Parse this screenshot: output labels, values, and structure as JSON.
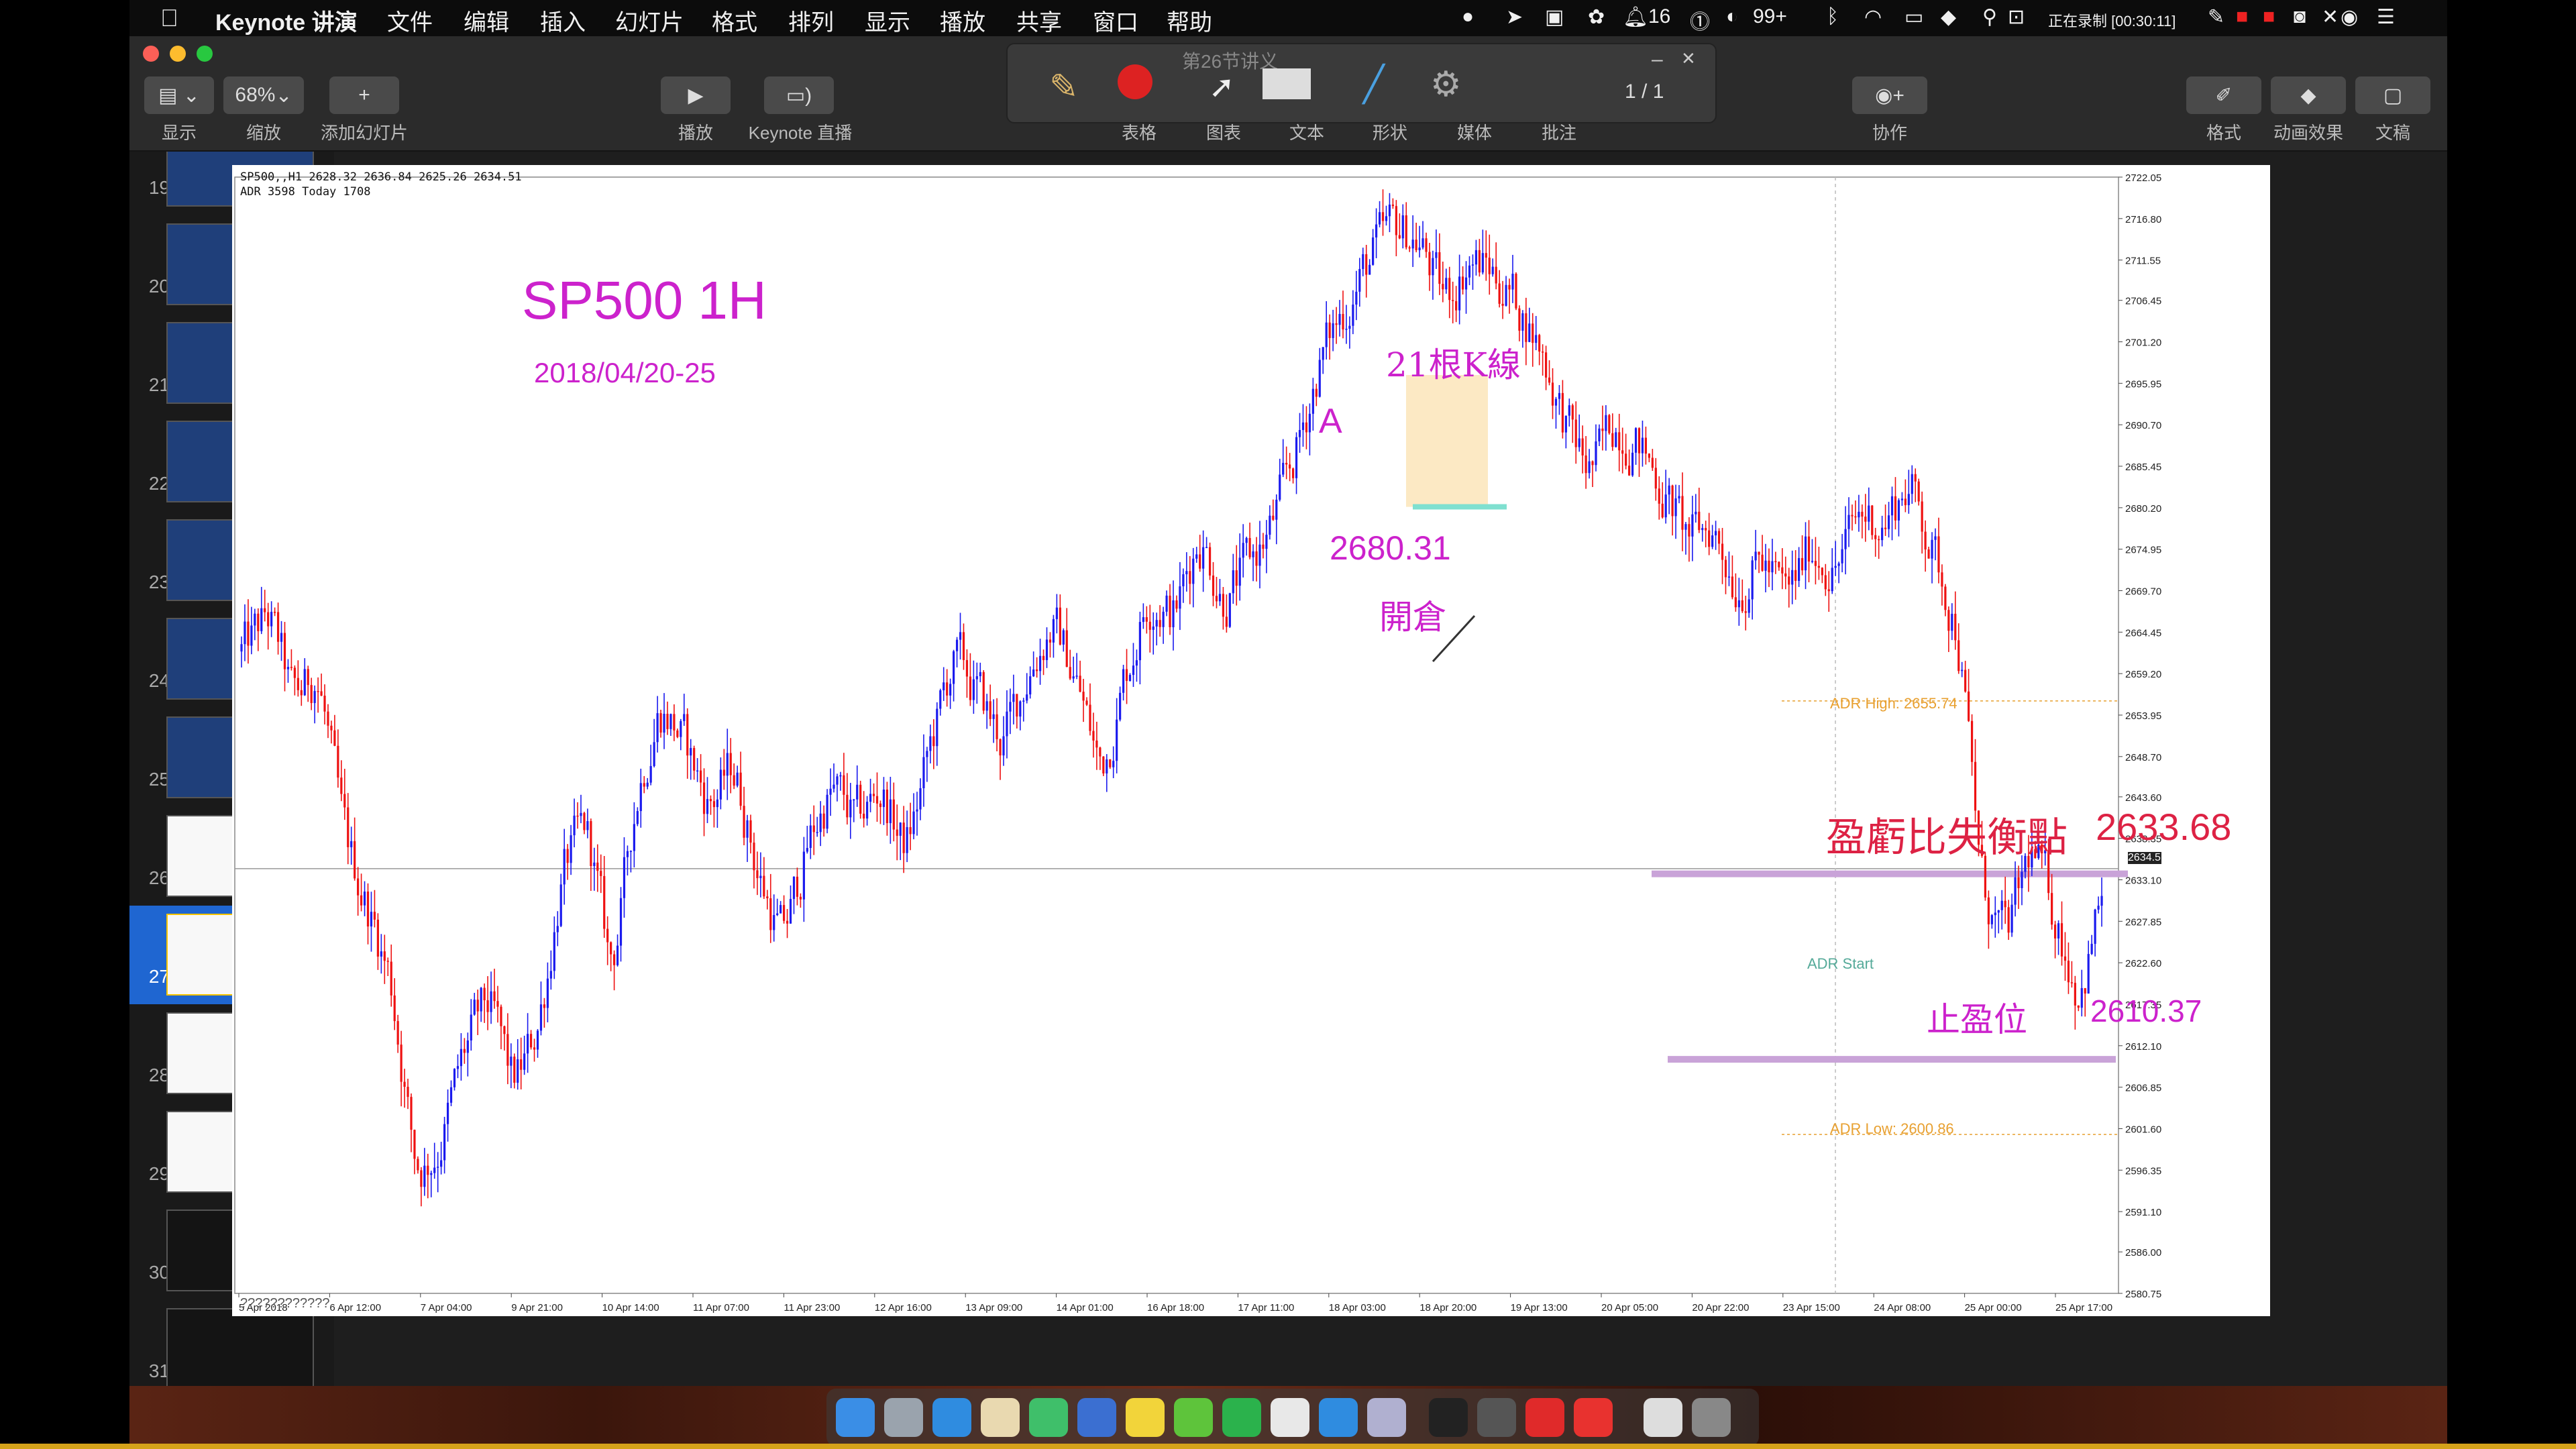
{
  "menubar": {
    "app_name": "Keynote 讲演",
    "items": [
      "文件",
      "编辑",
      "插入",
      "幻灯片",
      "格式",
      "排列",
      "显示",
      "播放",
      "共享",
      "窗口",
      "帮助"
    ],
    "status": {
      "notification_count": "16",
      "badge_count": "99+",
      "recording": "正在录制 [00:30:11]"
    }
  },
  "toolbar": {
    "view_label": "显示",
    "zoom_value": "68%",
    "zoom_label": "缩放",
    "add_slide_label": "添加幻灯片",
    "play_label": "播放",
    "live_label": "Keynote 直播",
    "table_label": "表格",
    "chart_label": "图表",
    "text_label": "文本",
    "shape_label": "形状",
    "media_label": "媒体",
    "comment_label": "批注",
    "collab_label": "协作",
    "format_label": "格式",
    "animate_label": "动画效果",
    "document_label": "文稿",
    "floating_title": "第26节讲义",
    "page_indicator": "1 / 1"
  },
  "sidebar": {
    "slides": [
      {
        "num": "19",
        "style": "dark"
      },
      {
        "num": "20",
        "style": "dark"
      },
      {
        "num": "21",
        "style": "dark"
      },
      {
        "num": "22",
        "style": "dark"
      },
      {
        "num": "23",
        "style": "dark"
      },
      {
        "num": "24",
        "style": "dark"
      },
      {
        "num": "25",
        "style": "dark"
      },
      {
        "num": "26",
        "style": "light"
      },
      {
        "num": "27",
        "style": "light",
        "selected": true
      },
      {
        "num": "28",
        "style": "light"
      },
      {
        "num": "29",
        "style": "light"
      },
      {
        "num": "30",
        "style": "black"
      },
      {
        "num": "31",
        "style": "black"
      }
    ]
  },
  "slide": {
    "chart_header_line1": "SP500,,H1  2628.32 2636.84 2625.26 2634.51",
    "chart_header_line2": "ADR 3598  Today 1708",
    "title": "SP500 1H",
    "date_range": "2018/04/20-25",
    "label_a": "A",
    "label_21k": "21根K線",
    "label_open_price": "2680.31",
    "label_open": "開倉",
    "adr_high": "ADR High: 2655.74",
    "adr_low": "ADR Low: 2600.86",
    "breakeven_label": "盈虧比失衡點",
    "breakeven_value": "2633.68",
    "take_profit_label": "止盈位",
    "take_profit_value": "2610.37",
    "current_price": "2634.51",
    "adr_start": "ADR Start",
    "footer_mark": "????????????",
    "colors": {
      "bull": "#1a1aee",
      "bear": "#ee1111",
      "pink": "#cc22cc",
      "level": "#c9a3d8",
      "adr": "#e8a030"
    }
  },
  "chart_data": {
    "type": "candlestick",
    "title": "SP500 1H",
    "x_ticks": [
      "5 Apr 2018",
      "6 Apr 12:00",
      "7 Apr 04:00",
      "9 Apr 21:00",
      "10 Apr 14:00",
      "11 Apr 07:00",
      "11 Apr 23:00",
      "12 Apr 16:00",
      "13 Apr 09:00",
      "14 Apr 01:00",
      "16 Apr 18:00",
      "17 Apr 11:00",
      "18 Apr 03:00",
      "18 Apr 20:00",
      "19 Apr 13:00",
      "20 Apr 05:00",
      "20 Apr 22:00",
      "23 Apr 15:00",
      "24 Apr 08:00",
      "25 Apr 00:00",
      "25 Apr 17:00"
    ],
    "y_ticks": [
      "2722.05",
      "2716.80",
      "2711.55",
      "2706.45",
      "2701.20",
      "2695.95",
      "2690.70",
      "2685.45",
      "2680.20",
      "2674.95",
      "2669.70",
      "2664.45",
      "2659.20",
      "2653.95",
      "2648.70",
      "2643.60",
      "2638.35",
      "2633.10",
      "2627.85",
      "2622.60",
      "2617.35",
      "2612.10",
      "2606.85",
      "2601.60",
      "2596.35",
      "2591.10",
      "2586.00",
      "2580.75"
    ],
    "ylim": [
      2580.75,
      2722.05
    ],
    "levels": [
      {
        "name": "breakeven",
        "value": 2633.68
      },
      {
        "name": "take_profit",
        "value": 2610.37
      },
      {
        "name": "open",
        "value": 2680.31
      },
      {
        "name": "adr_high",
        "value": 2655.74
      },
      {
        "name": "adr_low",
        "value": 2600.86
      },
      {
        "name": "current",
        "value": 2634.51
      }
    ],
    "close_path": [
      2662,
      2667,
      2655,
      2660,
      2638,
      2630,
      2620,
      2595,
      2600,
      2612,
      2618,
      2606,
      2615,
      2635,
      2640,
      2620,
      2645,
      2656,
      2650,
      2642,
      2648,
      2633,
      2625,
      2638,
      2645,
      2640,
      2645,
      2636,
      2650,
      2662,
      2656,
      2650,
      2660,
      2666,
      2658,
      2646,
      2660,
      2670,
      2666,
      2678,
      2668,
      2673,
      2678,
      2688,
      2700,
      2706,
      2712,
      2716,
      2714,
      2706,
      2712,
      2710,
      2706,
      2700,
      2690,
      2684,
      2692,
      2688,
      2682,
      2676,
      2678,
      2670,
      2674,
      2668,
      2676,
      2672,
      2680,
      2678,
      2684,
      2674,
      2665,
      2630,
      2625,
      2638,
      2628,
      2618,
      2634
    ]
  }
}
